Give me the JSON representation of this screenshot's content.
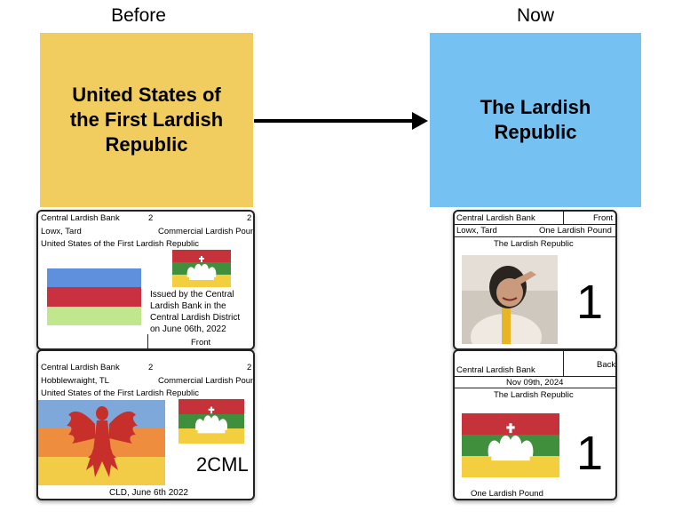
{
  "before": {
    "heading": "Before",
    "box_label": "United States of the First Lardish Republic",
    "box_color": "#f0cd5e",
    "front": {
      "bank": "Central Lardish Bank",
      "num1": "2",
      "num2": "2",
      "signer": "Lowx, Tard",
      "denomination": "Commercial Lardish Pounds",
      "country": "United States of the First Lardish Republic",
      "issued": [
        "Issued by the Central",
        "Lardish Bank in the",
        "Central Lardish District",
        "on June 06th, 2022"
      ],
      "side": "Front"
    },
    "back": {
      "bank": "Central Lardish Bank",
      "num1": "2",
      "num2": "2",
      "signer": "Hobblewraight, TL",
      "denomination": "Commercial Lardish Pounds",
      "country": "United States of the First Lardish Republic",
      "code": "2CML",
      "footer": "CLD, June 6th 2022"
    }
  },
  "now": {
    "heading": "Now",
    "box_label": "The Lardish Republic",
    "box_color": "#74c1f2",
    "front": {
      "bank": "Central Lardish Bank",
      "side": "Front",
      "signer": "Lowx, Tard",
      "denomination": "One Lardish Pound",
      "country": "The Lardish Republic",
      "digit": "1"
    },
    "back": {
      "bank": "Central Lardish Bank",
      "side": "Back",
      "date": "Nov 09th, 2024",
      "country": "The Lardish Republic",
      "digit": "1",
      "footer": "One Lardish Pound"
    }
  },
  "colors": {
    "flag_red": "#c5323a",
    "flag_green": "#3f8f3c",
    "flag_yellow": "#f3cf3f",
    "old_flag_blue": "#5e90dd",
    "old_flag_red": "#c93140",
    "old_flag_green": "#c0e68e",
    "eagle_flag_blue": "#7fa8da",
    "eagle_flag_orange": "#ee8d3d",
    "eagle_flag_yellow": "#f2cc47",
    "eagle_red": "#c72f2b"
  }
}
